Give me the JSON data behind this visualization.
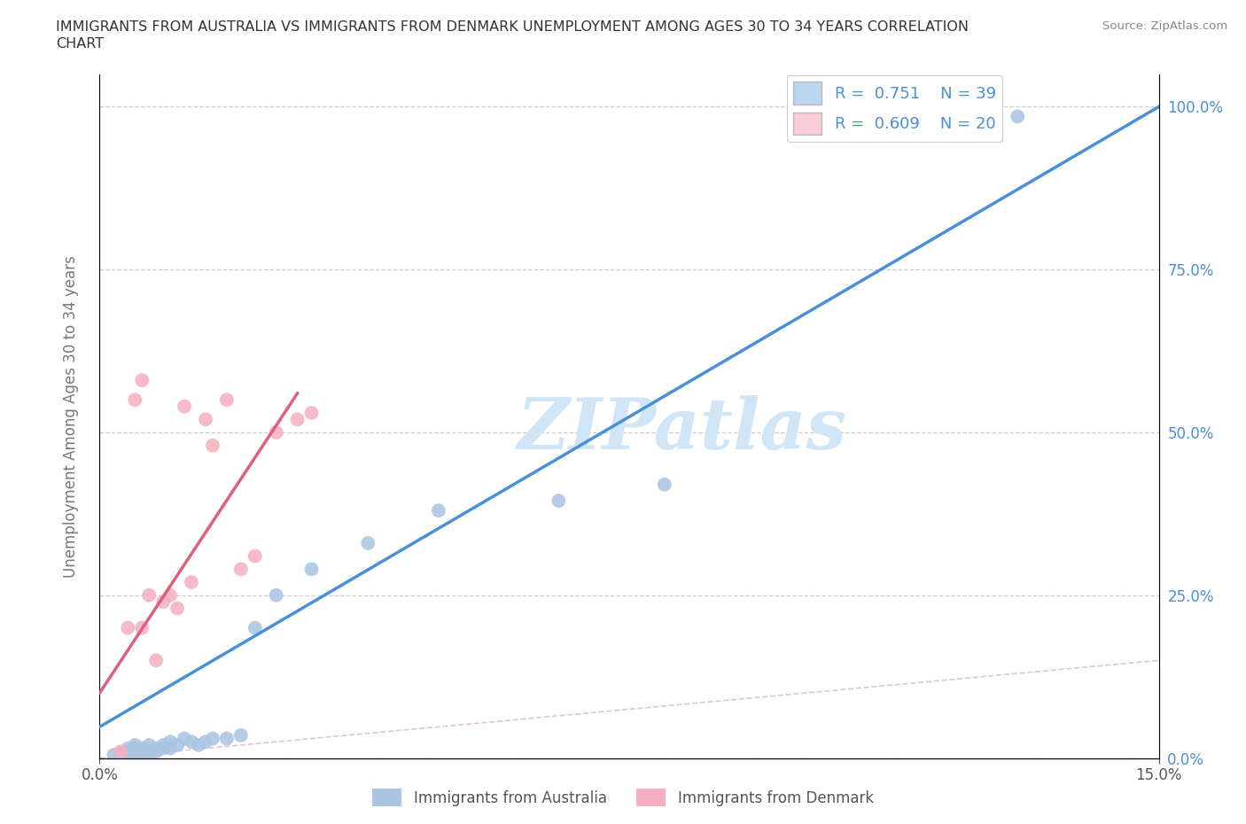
{
  "title_line1": "IMMIGRANTS FROM AUSTRALIA VS IMMIGRANTS FROM DENMARK UNEMPLOYMENT AMONG AGES 30 TO 34 YEARS CORRELATION",
  "title_line2": "CHART",
  "source": "Source: ZipAtlas.com",
  "ylabel": "Unemployment Among Ages 30 to 34 years",
  "xlim": [
    0.0,
    0.15
  ],
  "ylim": [
    0.0,
    1.05
  ],
  "ytick_labels": [
    "0.0%",
    "25.0%",
    "50.0%",
    "75.0%",
    "100.0%"
  ],
  "ytick_values": [
    0.0,
    0.25,
    0.5,
    0.75,
    1.0
  ],
  "aus_R": 0.751,
  "aus_N": 39,
  "den_R": 0.609,
  "den_N": 20,
  "australia_color": "#aac4e2",
  "denmark_color": "#f5afc0",
  "australia_line_color": "#4a90d9",
  "denmark_line_color": "#e0607a",
  "tick_color": "#4a90d9",
  "watermark_text": "ZIPatlas",
  "watermark_color": "#d0e5f5",
  "legend_aus_color": "#bbd6f0",
  "legend_den_color": "#f8ccd8",
  "aus_scatter_x": [
    0.002,
    0.003,
    0.003,
    0.004,
    0.004,
    0.004,
    0.005,
    0.005,
    0.005,
    0.005,
    0.006,
    0.006,
    0.006,
    0.007,
    0.007,
    0.007,
    0.008,
    0.008,
    0.009,
    0.009,
    0.01,
    0.01,
    0.011,
    0.012,
    0.013,
    0.014,
    0.015,
    0.016,
    0.018,
    0.02,
    0.022,
    0.025,
    0.03,
    0.038,
    0.048,
    0.065,
    0.08,
    0.125,
    0.13
  ],
  "aus_scatter_y": [
    0.005,
    0.005,
    0.008,
    0.005,
    0.01,
    0.015,
    0.005,
    0.01,
    0.015,
    0.02,
    0.005,
    0.01,
    0.015,
    0.005,
    0.01,
    0.02,
    0.01,
    0.015,
    0.015,
    0.02,
    0.015,
    0.025,
    0.02,
    0.03,
    0.025,
    0.02,
    0.025,
    0.03,
    0.03,
    0.035,
    0.2,
    0.25,
    0.29,
    0.33,
    0.38,
    0.395,
    0.42,
    0.995,
    0.985
  ],
  "den_scatter_x": [
    0.003,
    0.004,
    0.005,
    0.006,
    0.006,
    0.007,
    0.008,
    0.009,
    0.01,
    0.011,
    0.012,
    0.013,
    0.015,
    0.016,
    0.018,
    0.02,
    0.022,
    0.025,
    0.028,
    0.03
  ],
  "den_scatter_y": [
    0.01,
    0.2,
    0.55,
    0.58,
    0.2,
    0.25,
    0.15,
    0.24,
    0.25,
    0.23,
    0.54,
    0.27,
    0.52,
    0.48,
    0.55,
    0.29,
    0.31,
    0.5,
    0.52,
    0.53
  ],
  "aus_line_x0": 0.0,
  "aus_line_x1": 0.15,
  "aus_line_y0": 0.048,
  "aus_line_y1": 1.0,
  "den_line_x0": 0.0,
  "den_line_x1": 0.028,
  "den_line_y0": 0.1,
  "den_line_y1": 0.56
}
